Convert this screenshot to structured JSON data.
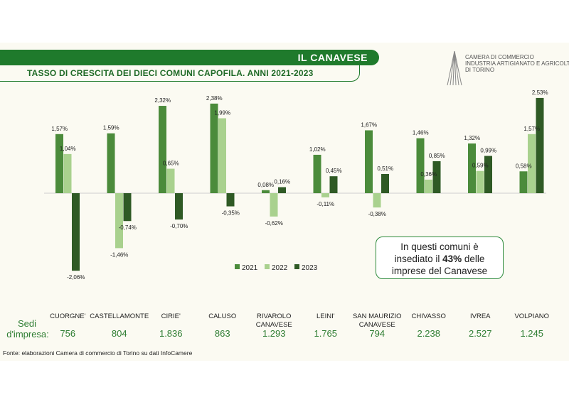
{
  "header": {
    "banner_title": "IL CANAVESE",
    "subtitle": "TASSO DI CRESCITA DEI DIECI COMUNI CAPOFILA. ANNI 2021-2023"
  },
  "logo": {
    "lines": [
      "CAMERA DI COMMERCIO",
      "INDUSTRIA ARTIGIANATO E AGRICOLTURA",
      "DI TORINO"
    ]
  },
  "callout": {
    "line1": "In questi comuni è",
    "line2_pre": "insediato il ",
    "line2_bold": "43%",
    "line2_post": " delle",
    "line3": "imprese del Canavese"
  },
  "table": {
    "row_label_1": "Sedi",
    "row_label_2": "d'impresa:",
    "communes": [
      {
        "name_1": "CUORGNE'",
        "name_2": "",
        "count": "756"
      },
      {
        "name_1": "CASTELLAMONTE",
        "name_2": "",
        "count": "804"
      },
      {
        "name_1": "CIRIE'",
        "name_2": "",
        "count": "1.836"
      },
      {
        "name_1": "CALUSO",
        "name_2": "",
        "count": "863"
      },
      {
        "name_1": "RIVAROLO",
        "name_2": "CANAVESE",
        "count": "1.293"
      },
      {
        "name_1": "LEINI'",
        "name_2": "",
        "count": "1.765"
      },
      {
        "name_1": "SAN MAURIZIO",
        "name_2": "CANAVESE",
        "count": "794"
      },
      {
        "name_1": "CHIVASSO",
        "name_2": "",
        "count": "2.238"
      },
      {
        "name_1": "IVREA",
        "name_2": "",
        "count": "2.527"
      },
      {
        "name_1": "VOLPIANO",
        "name_2": "",
        "count": "1.245"
      }
    ]
  },
  "source": "Fonte: elaborazioni Camera di commercio di Torino su dati InfoCamere",
  "colors": {
    "s2021": "#4b8b3b",
    "s2022": "#a9d18e",
    "s2023": "#2f5a25",
    "green": "#1f7a2c"
  },
  "chart_data": {
    "type": "bar",
    "title": "TASSO DI CRESCITA DEI DIECI COMUNI CAPOFILA. ANNI 2021-2023",
    "categories": [
      "CUORGNE'",
      "CASTELLAMONTE",
      "CIRIE'",
      "CALUSO",
      "RIVAROLO CANAVESE",
      "LEINI'",
      "SAN MAURIZIO CANAVESE",
      "CHIVASSO",
      "IVREA",
      "VOLPIANO"
    ],
    "series": [
      {
        "name": "2021",
        "values": [
          1.57,
          1.59,
          2.32,
          2.38,
          0.08,
          1.02,
          1.67,
          1.46,
          1.32,
          0.58
        ],
        "labels": [
          "1,57%",
          "1,59%",
          "2,32%",
          "2,38%",
          "0,08%",
          "1,02%",
          "1,67%",
          "1,46%",
          "1,32%",
          "0,58%"
        ]
      },
      {
        "name": "2022",
        "values": [
          1.04,
          -1.46,
          0.65,
          1.99,
          -0.62,
          -0.11,
          -0.38,
          0.36,
          0.59,
          1.57
        ],
        "labels": [
          "1,04%",
          "-1,46%",
          "0,65%",
          "1,99%",
          "-0,62%",
          "-0,11%",
          "-0,38%",
          "0,36%",
          "0,59%",
          "1,57%"
        ]
      },
      {
        "name": "2023",
        "values": [
          -2.06,
          -0.74,
          -0.7,
          -0.35,
          0.16,
          0.45,
          0.51,
          0.85,
          0.99,
          2.53
        ],
        "labels": [
          "-2,06%",
          "-0,74%",
          "-0,70%",
          "-0,35%",
          "0,16%",
          "0,45%",
          "0,51%",
          "0,85%",
          "0,99%",
          "2,53%"
        ]
      }
    ],
    "ylim": [
      -2.2,
      2.6
    ],
    "grid": false,
    "legend_position": "bottom-center"
  }
}
